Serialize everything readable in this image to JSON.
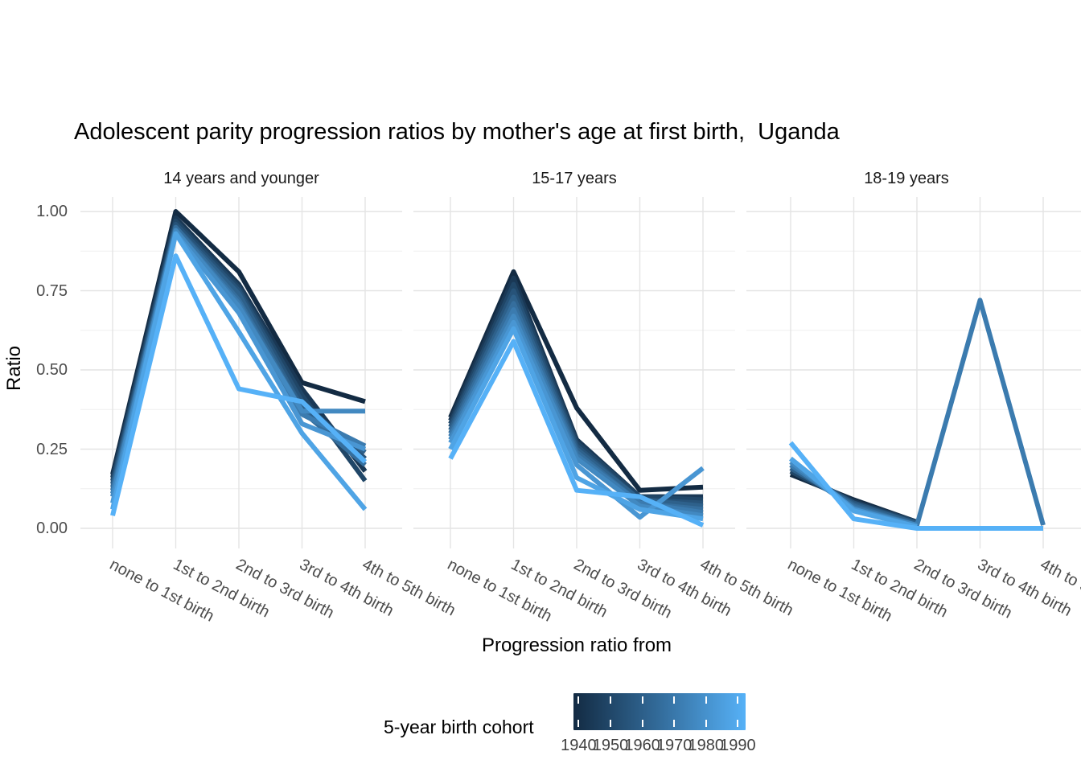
{
  "title": "Adolescent parity progression ratios by mother's age at first birth,  Uganda",
  "chart_data": {
    "type": "line",
    "title": "Adolescent parity progression ratios by mother's age at first birth,  Uganda",
    "xlabel": "Progression ratio from",
    "ylabel": "Ratio",
    "ylim": [
      0.0,
      1.0
    ],
    "ytick_labels": [
      "1.00",
      "0.75",
      "0.50",
      "0.25",
      "0.00"
    ],
    "ytick_values": [
      1.0,
      0.75,
      0.5,
      0.25,
      0.0
    ],
    "grid": "major and minor horizontal, major vertical, light grey on white",
    "categories": [
      "none to 1st birth",
      "1st to 2nd birth",
      "2nd to 3rd birth",
      "3rd to 4th birth",
      "4th to 5th birth"
    ],
    "legend": {
      "title": "5-year birth cohort",
      "position": "bottom",
      "type": "continuous-gradient",
      "low_color": "#132B43",
      "mid_color": "#336C9B",
      "high_color": "#56B1F7",
      "tick_labels": [
        "1940",
        "1950",
        "1960",
        "1970",
        "1980",
        "1990"
      ],
      "cohort_min": 1940,
      "cohort_max": 1990
    },
    "facets": [
      {
        "label": "14 years and younger",
        "series": [
          {
            "name": 1940,
            "values": [
              0.17,
              1.0,
              0.81,
              0.46,
              0.4
            ]
          },
          {
            "name": 1945,
            "values": [
              0.16,
              0.98,
              0.77,
              0.44,
              0.18
            ]
          },
          {
            "name": 1950,
            "values": [
              0.15,
              0.97,
              0.76,
              0.42,
              0.15
            ]
          },
          {
            "name": 1955,
            "values": [
              0.14,
              0.96,
              0.75,
              0.4,
              0.22
            ]
          },
          {
            "name": 1960,
            "values": [
              0.13,
              0.95,
              0.74,
              0.38,
              0.24
            ]
          },
          {
            "name": 1965,
            "values": [
              0.12,
              0.95,
              0.72,
              0.37,
              0.2
            ]
          },
          {
            "name": 1970,
            "values": [
              0.11,
              0.94,
              0.71,
              0.36,
              0.26
            ]
          },
          {
            "name": 1975,
            "values": [
              0.1,
              0.94,
              0.7,
              0.37,
              0.37
            ]
          },
          {
            "name": 1980,
            "values": [
              0.08,
              0.93,
              0.68,
              0.33,
              0.25
            ]
          },
          {
            "name": 1985,
            "values": [
              0.06,
              0.93,
              0.62,
              0.3,
              0.06
            ]
          },
          {
            "name": 1990,
            "values": [
              0.04,
              0.86,
              0.44,
              0.4,
              0.21
            ]
          }
        ]
      },
      {
        "label": "15-17 years",
        "series": [
          {
            "name": 1940,
            "values": [
              0.35,
              0.81,
              0.38,
              0.12,
              0.13
            ]
          },
          {
            "name": 1945,
            "values": [
              0.34,
              0.79,
              0.28,
              0.1,
              0.1
            ]
          },
          {
            "name": 1950,
            "values": [
              0.33,
              0.77,
              0.27,
              0.1,
              0.09
            ]
          },
          {
            "name": 1955,
            "values": [
              0.32,
              0.75,
              0.26,
              0.09,
              0.08
            ]
          },
          {
            "name": 1960,
            "values": [
              0.31,
              0.73,
              0.25,
              0.09,
              0.07
            ]
          },
          {
            "name": 1965,
            "values": [
              0.3,
              0.71,
              0.24,
              0.08,
              0.06
            ]
          },
          {
            "name": 1970,
            "values": [
              0.29,
              0.69,
              0.23,
              0.08,
              0.05
            ]
          },
          {
            "name": 1975,
            "values": [
              0.28,
              0.67,
              0.22,
              0.07,
              0.04
            ]
          },
          {
            "name": 1980,
            "values": [
              0.27,
              0.65,
              0.2,
              0.035,
              0.19
            ]
          },
          {
            "name": 1985,
            "values": [
              0.25,
              0.63,
              0.16,
              0.06,
              0.03
            ]
          },
          {
            "name": 1990,
            "values": [
              0.22,
              0.59,
              0.12,
              0.1,
              0.01
            ]
          }
        ]
      },
      {
        "label": "18-19 years",
        "series": [
          {
            "name": 1940,
            "values": [
              0.17,
              0.09,
              0.02,
              null,
              null
            ]
          },
          {
            "name": 1945,
            "values": [
              0.18,
              0.085,
              0.02,
              null,
              null
            ]
          },
          {
            "name": 1950,
            "values": [
              0.18,
              0.08,
              0.02,
              null,
              null
            ]
          },
          {
            "name": 1955,
            "values": [
              0.19,
              0.08,
              0.015,
              null,
              null
            ]
          },
          {
            "name": 1960,
            "values": [
              0.19,
              0.075,
              0.015,
              null,
              null
            ]
          },
          {
            "name": 1965,
            "values": [
              0.2,
              0.07,
              0.01,
              null,
              null
            ]
          },
          {
            "name": 1970,
            "values": [
              0.2,
              0.065,
              0.01,
              0.72,
              0.01
            ]
          },
          {
            "name": 1975,
            "values": [
              0.21,
              0.06,
              0.01,
              null,
              null
            ]
          },
          {
            "name": 1980,
            "values": [
              0.22,
              0.06,
              0.005,
              null,
              null
            ]
          },
          {
            "name": 1985,
            "values": [
              0.22,
              0.055,
              0.005,
              null,
              null
            ]
          },
          {
            "name": 1990,
            "values": [
              0.27,
              0.03,
              0.0,
              0.0,
              0.0
            ]
          }
        ]
      }
    ]
  },
  "style": {
    "background": "#ffffff",
    "grid_major_color": "#e4e4e4",
    "grid_minor_color": "#efefef",
    "axis_text_color": "#4d4d4d",
    "strip_text_color": "#1a1a1a",
    "title_color": "#000000"
  }
}
